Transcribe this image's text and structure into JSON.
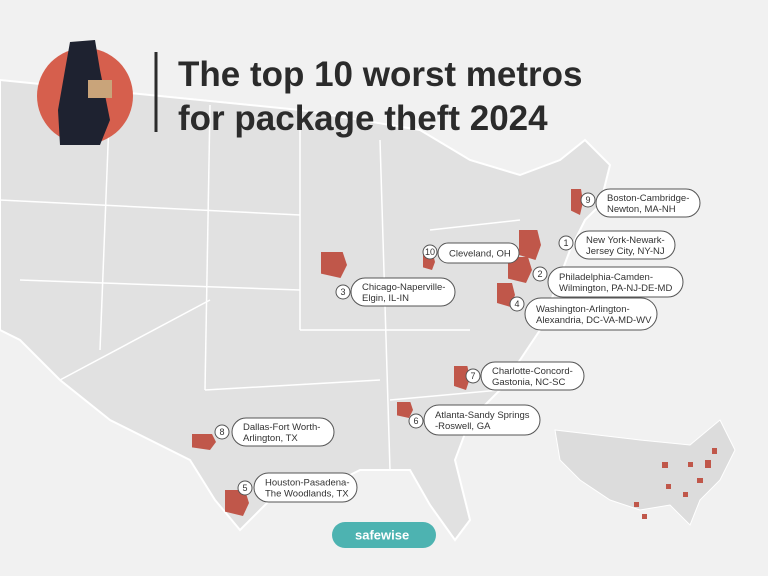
{
  "title": [
    "The top 10 worst metros",
    "for package theft 2024"
  ],
  "metros": [
    {
      "rank": 1,
      "label": [
        "New York-Newark-",
        "Jersey City, NY-NJ"
      ]
    },
    {
      "rank": 2,
      "label": [
        "Philadelphia-Camden-",
        "Wilmington, PA-NJ-DE-MD"
      ]
    },
    {
      "rank": 3,
      "label": [
        "Chicago-Naperville-",
        "Elgin, IL-IN"
      ]
    },
    {
      "rank": 4,
      "label": [
        "Washington-Arlington-",
        "Alexandria, DC-VA-MD-WV"
      ]
    },
    {
      "rank": 5,
      "label": [
        "Houston-Pasadena-",
        "The Woodlands, TX"
      ]
    },
    {
      "rank": 6,
      "label": [
        "Atlanta-Sandy Springs",
        "-Roswell, GA"
      ]
    },
    {
      "rank": 7,
      "label": [
        "Charlotte-Concord-",
        "Gastonia, NC-SC"
      ]
    },
    {
      "rank": 8,
      "label": [
        "Dallas-Fort Worth-",
        "Arlington, TX"
      ]
    },
    {
      "rank": 9,
      "label": [
        "Boston-Cambridge-",
        "Newton, MA-NH"
      ]
    },
    {
      "rank": 10,
      "label": [
        "Cleveland, OH"
      ]
    }
  ],
  "brand": "safewise"
}
